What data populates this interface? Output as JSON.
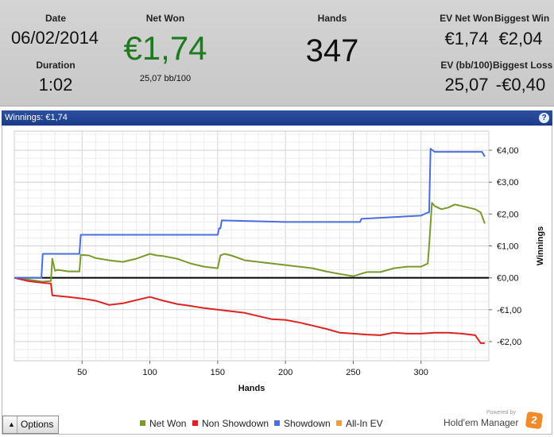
{
  "summary": {
    "date_label": "Date",
    "date_value": "06/02/2014",
    "duration_label": "Duration",
    "duration_value": "1:02",
    "net_won_label": "Net Won",
    "net_won_value": "€1,74",
    "net_won_sub": "25,07 bb/100",
    "hands_label": "Hands",
    "hands_value": "347",
    "ev_net_won_label": "EV Net Won",
    "ev_net_won_value": "€1,74",
    "biggest_win_label": "Biggest Win",
    "biggest_win_value": "€2,04",
    "ev_bb_label": "EV (bb/100)",
    "ev_bb_value": "25,07",
    "biggest_loss_label": "Biggest Loss",
    "biggest_loss_value": "-€0,40",
    "net_won_color": "#1f7a1f"
  },
  "header": {
    "title": "Winnings: €1,74",
    "help_glyph": "?"
  },
  "footer": {
    "options_label": "Options",
    "options_arrow": "▲",
    "powered_by": "Powered by",
    "logo_text": "Hold'em Manager",
    "logo_badge": "2"
  },
  "chart_data": {
    "type": "line",
    "xlabel": "Hands",
    "ylabel": "Winnings",
    "xlim": [
      0,
      350
    ],
    "ylim": [
      -2.6,
      4.6
    ],
    "x_ticks": [
      50,
      100,
      150,
      200,
      250,
      300
    ],
    "y_ticks": [
      -2,
      -1,
      0,
      1,
      2,
      3,
      4
    ],
    "y_tick_labels": [
      "-€2,00",
      "-€1,00",
      "€0,00",
      "€1,00",
      "€2,00",
      "€3,00",
      "€4,00"
    ],
    "grid": true,
    "legend_position": "bottom",
    "series": [
      {
        "name": "Net Won",
        "color": "#7a9a2e",
        "x": [
          0,
          18,
          20,
          27,
          28,
          30,
          32,
          40,
          48,
          49,
          55,
          60,
          70,
          80,
          90,
          100,
          105,
          110,
          120,
          130,
          140,
          150,
          152,
          155,
          160,
          170,
          180,
          190,
          200,
          210,
          220,
          230,
          240,
          250,
          260,
          270,
          280,
          290,
          300,
          305,
          306,
          308,
          310,
          315,
          320,
          325,
          330,
          335,
          340,
          344,
          347
        ],
        "y": [
          0,
          -0.1,
          -0.12,
          -0.1,
          0.6,
          0.22,
          0.25,
          0.2,
          0.2,
          0.72,
          0.7,
          0.62,
          0.55,
          0.5,
          0.6,
          0.75,
          0.7,
          0.68,
          0.6,
          0.45,
          0.35,
          0.3,
          0.7,
          0.75,
          0.7,
          0.55,
          0.5,
          0.45,
          0.4,
          0.35,
          0.3,
          0.2,
          0.12,
          0.05,
          0.18,
          0.18,
          0.3,
          0.35,
          0.35,
          0.45,
          1.0,
          2.35,
          2.25,
          2.15,
          2.2,
          2.3,
          2.25,
          2.2,
          2.15,
          2.05,
          1.7
        ]
      },
      {
        "name": "Non Showdown",
        "color": "#dd2222",
        "x": [
          0,
          10,
          20,
          27,
          28,
          40,
          50,
          60,
          70,
          80,
          90,
          100,
          110,
          120,
          130,
          140,
          150,
          160,
          170,
          180,
          190,
          200,
          210,
          220,
          230,
          240,
          250,
          260,
          270,
          280,
          290,
          300,
          310,
          320,
          330,
          340,
          344,
          347
        ],
        "y": [
          0,
          -0.1,
          -0.15,
          -0.18,
          -0.55,
          -0.6,
          -0.65,
          -0.72,
          -0.85,
          -0.8,
          -0.7,
          -0.6,
          -0.72,
          -0.82,
          -0.88,
          -0.95,
          -1.0,
          -1.05,
          -1.1,
          -1.2,
          -1.3,
          -1.32,
          -1.4,
          -1.5,
          -1.6,
          -1.72,
          -1.75,
          -1.78,
          -1.8,
          -1.72,
          -1.75,
          -1.75,
          -1.72,
          -1.72,
          -1.75,
          -1.8,
          -2.05,
          -2.05
        ]
      },
      {
        "name": "Showdown",
        "color": "#4a6ee0",
        "x": [
          0,
          20,
          21,
          30,
          48,
          49,
          60,
          100,
          150,
          151,
          152,
          153,
          200,
          250,
          255,
          256,
          300,
          305,
          306,
          307,
          310,
          320,
          330,
          340,
          345,
          347
        ],
        "y": [
          0,
          0,
          0.75,
          0.75,
          0.75,
          1.35,
          1.35,
          1.35,
          1.35,
          1.55,
          1.55,
          1.8,
          1.75,
          1.75,
          1.75,
          1.85,
          1.95,
          2.05,
          2.05,
          4.05,
          3.95,
          3.95,
          3.95,
          3.95,
          3.95,
          3.8
        ]
      },
      {
        "name": "All-In EV",
        "color": "#f0a030",
        "x": [],
        "y": []
      }
    ]
  }
}
